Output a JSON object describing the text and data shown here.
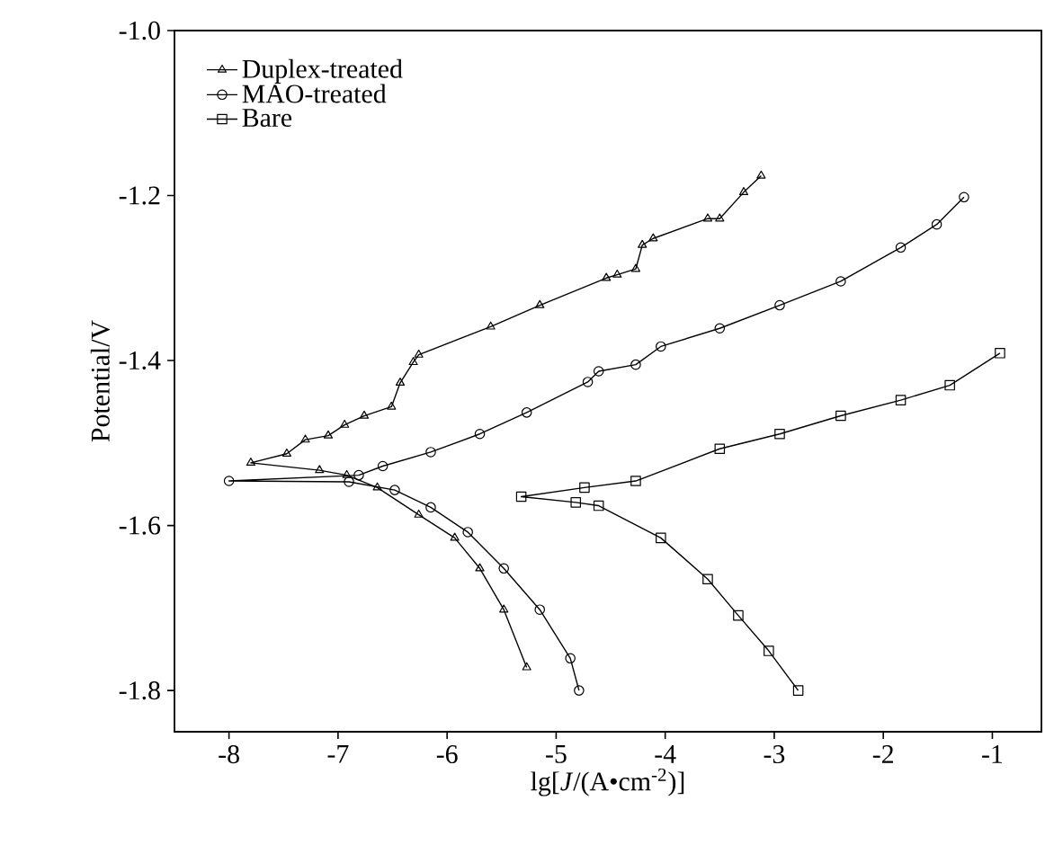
{
  "chart_data": {
    "type": "line",
    "xlabel": "lg[*J*/(A•cm$^{-2}$)]",
    "ylabel": "Potential/V",
    "xlim": [
      -8.5,
      -0.55
    ],
    "ylim": [
      -1.85,
      -1.0
    ],
    "xticks": [
      -8,
      -7,
      -6,
      -5,
      -4,
      -3,
      -2,
      -1
    ],
    "yticks": [
      -1.8,
      -1.6,
      -1.4,
      -1.2,
      {
        "value": -1.0,
        "label": "-1.0"
      }
    ],
    "grid": false,
    "legend": "top left",
    "series": [
      {
        "name": "Duplex-treated",
        "color": "#000000",
        "marker": "triangle",
        "x": [
          -5.27,
          -5.48,
          -5.7,
          -5.93,
          -6.26,
          -6.64,
          -6.92,
          -7.17,
          -7.8,
          -7.47,
          -7.3,
          -7.09,
          -6.94,
          -6.76,
          -6.51,
          -6.43,
          -6.31,
          -6.26,
          -5.6,
          -5.15,
          -4.54,
          -4.44,
          -4.27,
          -4.21,
          -4.11,
          -3.61,
          -3.5,
          -3.28,
          -3.12
        ],
        "values": [
          -1.772,
          -1.702,
          -1.652,
          -1.615,
          -1.587,
          -1.554,
          -1.539,
          -1.533,
          -1.524,
          -1.513,
          -1.496,
          -1.491,
          -1.478,
          -1.467,
          -1.456,
          -1.427,
          -1.402,
          -1.393,
          -1.359,
          -1.333,
          -1.3,
          -1.296,
          -1.289,
          -1.26,
          -1.252,
          -1.228,
          -1.228,
          -1.196,
          -1.176
        ]
      },
      {
        "name": "MAO-treated",
        "color": "#000000",
        "marker": "circle",
        "x": [
          -4.79,
          -4.87,
          -5.15,
          -5.48,
          -5.81,
          -6.15,
          -6.48,
          -6.9,
          -8.0,
          -6.81,
          -6.59,
          -6.15,
          -5.7,
          -5.27,
          -4.71,
          -4.61,
          -4.27,
          -4.04,
          -3.5,
          -2.95,
          -2.39,
          -1.84,
          -1.51,
          -1.26
        ],
        "values": [
          -1.8,
          -1.761,
          -1.702,
          -1.652,
          -1.608,
          -1.578,
          -1.557,
          -1.547,
          -1.546,
          -1.539,
          -1.528,
          -1.511,
          -1.489,
          -1.463,
          -1.426,
          -1.413,
          -1.405,
          -1.383,
          -1.361,
          -1.333,
          -1.304,
          -1.263,
          -1.235,
          -1.202
        ]
      },
      {
        "name": "Bare",
        "color": "#000000",
        "marker": "square",
        "x": [
          -2.78,
          -3.05,
          -3.33,
          -3.61,
          -4.04,
          -4.61,
          -4.82,
          -5.32,
          -4.74,
          -4.27,
          -3.5,
          -2.95,
          -2.39,
          -1.84,
          -1.39,
          -0.93
        ],
        "values": [
          -1.8,
          -1.752,
          -1.709,
          -1.665,
          -1.615,
          -1.576,
          -1.572,
          -1.565,
          -1.554,
          -1.546,
          -1.507,
          -1.489,
          -1.467,
          -1.448,
          -1.43,
          -1.391
        ]
      }
    ]
  }
}
